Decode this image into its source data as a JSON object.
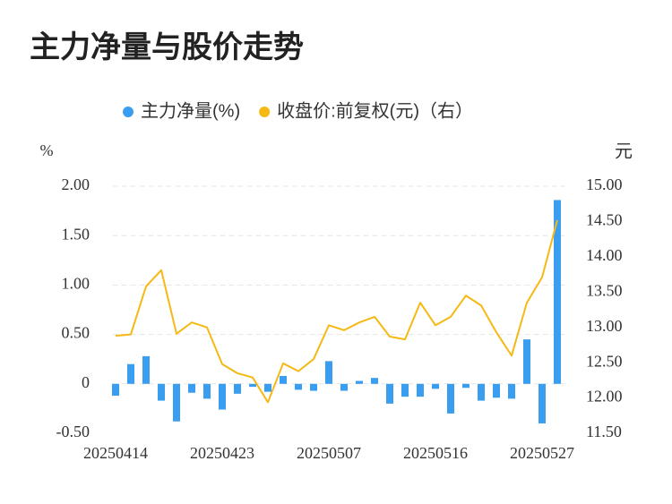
{
  "chart_data": {
    "type": "bar",
    "title": "主力净量与股价走势",
    "y_label": "%",
    "y2_label": "元",
    "categories": [
      "20250414",
      null,
      null,
      null,
      null,
      null,
      null,
      "20250423",
      null,
      null,
      null,
      null,
      null,
      null,
      "20250507",
      null,
      null,
      null,
      null,
      null,
      null,
      "20250516",
      null,
      null,
      null,
      null,
      null,
      null,
      "20250527",
      null
    ],
    "series": [
      {
        "name": "主力净量(%)",
        "color": "#3a9ef0",
        "values": [
          -0.12,
          0.2,
          0.28,
          -0.17,
          -0.38,
          -0.09,
          -0.15,
          -0.26,
          -0.1,
          -0.03,
          -0.08,
          0.08,
          -0.06,
          -0.07,
          0.23,
          -0.07,
          0.03,
          0.06,
          -0.2,
          -0.13,
          -0.13,
          -0.05,
          -0.3,
          -0.04,
          -0.17,
          -0.14,
          -0.15,
          0.45,
          -0.4,
          1.86
        ]
      },
      {
        "name": "收盘价:前复权(元)（右）",
        "color": "#f5b914",
        "type": "line",
        "axis": "y2",
        "values": [
          12.88,
          12.9,
          13.58,
          13.81,
          12.91,
          13.07,
          13.0,
          12.48,
          12.35,
          12.29,
          11.94,
          12.49,
          12.38,
          12.55,
          13.03,
          12.96,
          13.07,
          13.15,
          12.87,
          12.83,
          13.35,
          13.03,
          13.15,
          13.45,
          13.31,
          12.93,
          12.6,
          13.35,
          13.71,
          14.52
        ]
      }
    ],
    "ylim": [
      -0.5,
      2.0
    ],
    "yticks": [
      {
        "value": -0.5,
        "label": "-0.50"
      },
      0,
      {
        "value": 0.5,
        "label": "0.50"
      },
      {
        "value": 1.0,
        "label": "1.00"
      },
      {
        "value": 1.5,
        "label": "1.50"
      },
      {
        "value": 2.0,
        "label": "2.00"
      }
    ],
    "y2lim": [
      11.5,
      15.0
    ],
    "y2ticks": [
      {
        "value": 11.5,
        "label": "11.50"
      },
      {
        "value": 12.0,
        "label": "12.00"
      },
      {
        "value": 12.5,
        "label": "12.50"
      },
      {
        "value": 13.0,
        "label": "13.00"
      },
      {
        "value": 13.5,
        "label": "13.50"
      },
      {
        "value": 14.0,
        "label": "14.00"
      },
      {
        "value": 14.5,
        "label": "14.50"
      },
      {
        "value": 15.0,
        "label": "15.00"
      }
    ],
    "grid": true
  }
}
